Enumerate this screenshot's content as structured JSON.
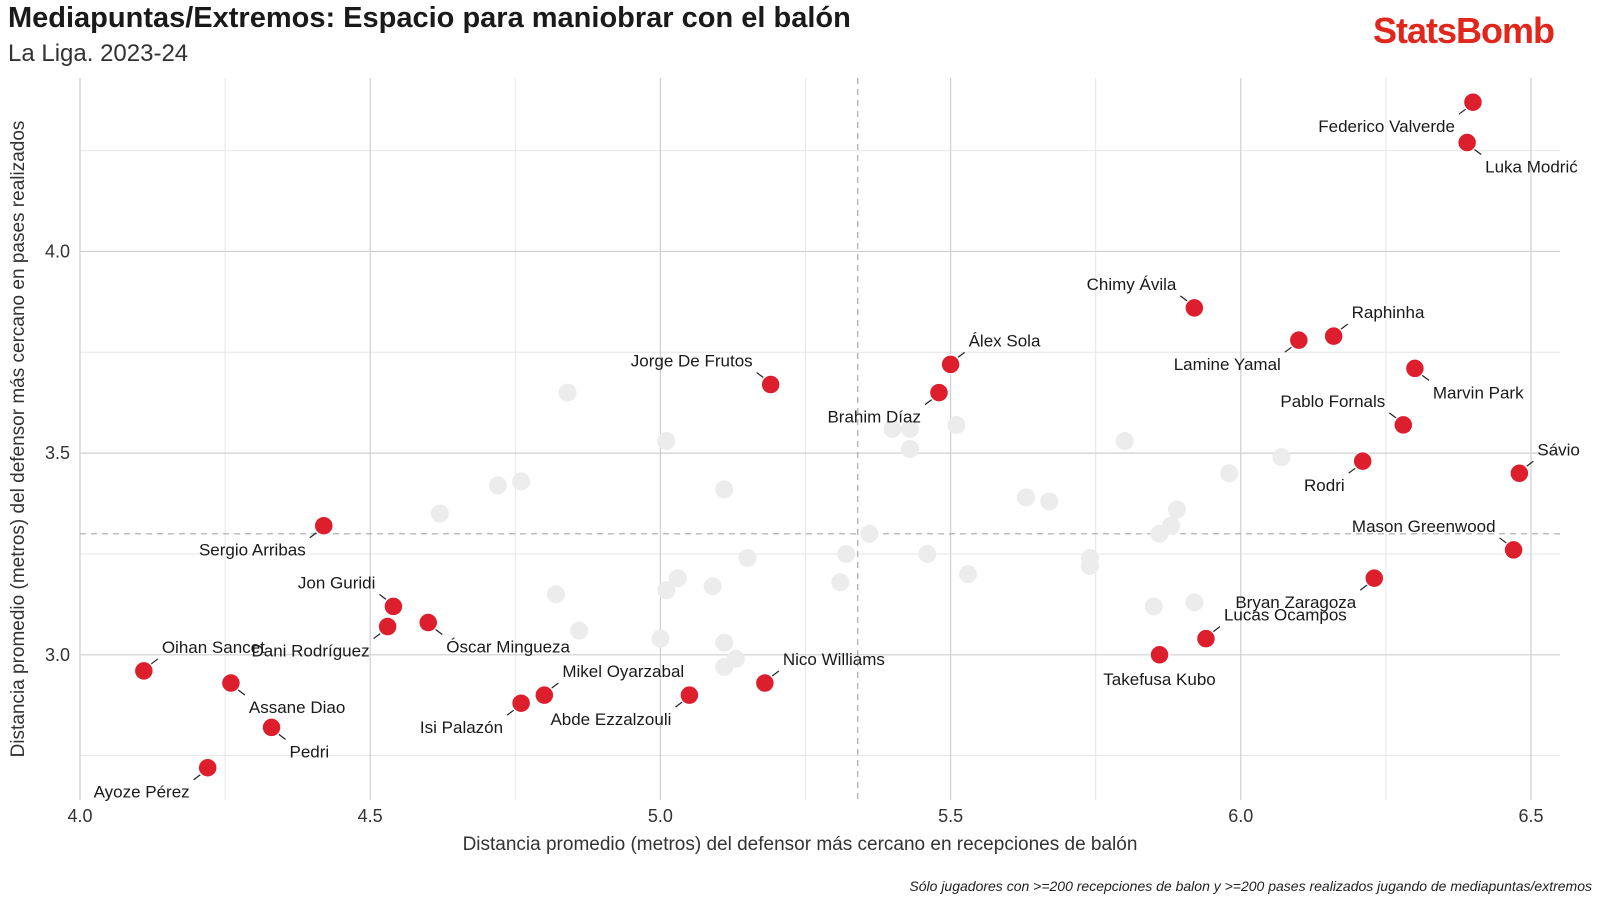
{
  "header": {
    "title": "Mediapuntas/Extremos: Espacio para maniobrar con el balón",
    "subtitle": "La Liga. 2023-24",
    "brand": "StatsBomb"
  },
  "footnote": "Sólo jugadores con >=200 recepciones de balon y >=200 pases realizados jugando de mediapuntas/extremos",
  "colors": {
    "highlight": "#dc1e2d",
    "background_points": "#ececec",
    "grid_major": "#cfcfcf",
    "grid_minor": "#e6e6e6",
    "brand": "#e1261c"
  },
  "chart_data": {
    "type": "scatter",
    "xlabel": "Distancia promedio (metros) del defensor más cercano en recepciones de balón",
    "ylabel": "Distancia promedio (metros) del defensor más cercano en pases realizados",
    "xlim": [
      4.0,
      6.55
    ],
    "ylim": [
      2.64,
      4.43
    ],
    "xticks": [
      "4.0",
      "4.5",
      "5.0",
      "5.5",
      "6.0",
      "6.5"
    ],
    "yticks": [
      "3.0",
      "3.5",
      "4.0"
    ],
    "grid": true,
    "reference_lines": {
      "x": 5.34,
      "y": 3.3
    },
    "highlighted": [
      {
        "name": "Federico Valverde",
        "x": 6.4,
        "y": 4.37,
        "label_pos": "bl"
      },
      {
        "name": "Luka Modrić",
        "x": 6.39,
        "y": 4.27,
        "label_pos": "br"
      },
      {
        "name": "Chimy Ávila",
        "x": 5.92,
        "y": 3.86,
        "label_pos": "tl"
      },
      {
        "name": "Raphinha",
        "x": 6.16,
        "y": 3.79,
        "label_pos": "tr"
      },
      {
        "name": "Lamine Yamal",
        "x": 6.1,
        "y": 3.78,
        "label_pos": "bl"
      },
      {
        "name": "Álex Sola",
        "x": 5.5,
        "y": 3.72,
        "label_pos": "tr"
      },
      {
        "name": "Marvin Park",
        "x": 6.3,
        "y": 3.71,
        "label_pos": "br"
      },
      {
        "name": "Jorge De Frutos",
        "x": 5.19,
        "y": 3.67,
        "label_pos": "tl"
      },
      {
        "name": "Brahim Díaz",
        "x": 5.48,
        "y": 3.65,
        "label_pos": "bl"
      },
      {
        "name": "Pablo Fornals",
        "x": 6.28,
        "y": 3.57,
        "label_pos": "tl"
      },
      {
        "name": "Rodri",
        "x": 6.21,
        "y": 3.48,
        "label_pos": "bl"
      },
      {
        "name": "Sávio",
        "x": 6.48,
        "y": 3.45,
        "label_pos": "tr"
      },
      {
        "name": "Sergio Arribas",
        "x": 4.42,
        "y": 3.32,
        "label_pos": "bl"
      },
      {
        "name": "Mason Greenwood",
        "x": 6.47,
        "y": 3.26,
        "label_pos": "tl"
      },
      {
        "name": "Bryan Zaragoza",
        "x": 6.23,
        "y": 3.19,
        "label_pos": "bl"
      },
      {
        "name": "Jon Guridi",
        "x": 4.54,
        "y": 3.12,
        "label_pos": "tl"
      },
      {
        "name": "Óscar Mingueza",
        "x": 4.6,
        "y": 3.08,
        "label_pos": "br"
      },
      {
        "name": "Dani Rodríguez",
        "x": 4.53,
        "y": 3.07,
        "label_pos": "bl"
      },
      {
        "name": "Lucas Ocampos",
        "x": 5.94,
        "y": 3.04,
        "label_pos": "tr"
      },
      {
        "name": "Takefusa Kubo",
        "x": 5.86,
        "y": 3.0,
        "label_pos": "bm"
      },
      {
        "name": "Oihan Sancet",
        "x": 4.11,
        "y": 2.96,
        "label_pos": "tr"
      },
      {
        "name": "Nico Williams",
        "x": 5.18,
        "y": 2.93,
        "label_pos": "tr"
      },
      {
        "name": "Assane Diao",
        "x": 4.26,
        "y": 2.93,
        "label_pos": "br"
      },
      {
        "name": "Mikel Oyarzabal",
        "x": 4.8,
        "y": 2.9,
        "label_pos": "tr"
      },
      {
        "name": "Abde Ezzalzouli",
        "x": 5.05,
        "y": 2.9,
        "label_pos": "bl"
      },
      {
        "name": "Isi Palazón",
        "x": 4.76,
        "y": 2.88,
        "label_pos": "bl"
      },
      {
        "name": "Pedri",
        "x": 4.33,
        "y": 2.82,
        "label_pos": "br"
      },
      {
        "name": "Ayoze Pérez",
        "x": 4.22,
        "y": 2.72,
        "label_pos": "bl"
      }
    ],
    "others": [
      {
        "x": 4.84,
        "y": 3.65
      },
      {
        "x": 5.01,
        "y": 3.53
      },
      {
        "x": 4.72,
        "y": 3.42
      },
      {
        "x": 4.76,
        "y": 3.43
      },
      {
        "x": 4.62,
        "y": 3.35
      },
      {
        "x": 5.11,
        "y": 3.41
      },
      {
        "x": 5.36,
        "y": 3.3
      },
      {
        "x": 5.32,
        "y": 3.25
      },
      {
        "x": 5.15,
        "y": 3.24
      },
      {
        "x": 5.03,
        "y": 3.19
      },
      {
        "x": 5.09,
        "y": 3.17
      },
      {
        "x": 5.01,
        "y": 3.16
      },
      {
        "x": 4.82,
        "y": 3.15
      },
      {
        "x": 5.31,
        "y": 3.18
      },
      {
        "x": 4.86,
        "y": 3.06
      },
      {
        "x": 5.0,
        "y": 3.04
      },
      {
        "x": 5.11,
        "y": 3.03
      },
      {
        "x": 5.13,
        "y": 2.99
      },
      {
        "x": 5.11,
        "y": 2.97
      },
      {
        "x": 5.4,
        "y": 3.56
      },
      {
        "x": 5.43,
        "y": 3.56
      },
      {
        "x": 5.43,
        "y": 3.51
      },
      {
        "x": 5.51,
        "y": 3.57
      },
      {
        "x": 5.46,
        "y": 3.25
      },
      {
        "x": 5.53,
        "y": 3.2
      },
      {
        "x": 5.63,
        "y": 3.39
      },
      {
        "x": 5.67,
        "y": 3.38
      },
      {
        "x": 5.74,
        "y": 3.24
      },
      {
        "x": 5.74,
        "y": 3.22
      },
      {
        "x": 5.8,
        "y": 3.53
      },
      {
        "x": 5.86,
        "y": 3.3
      },
      {
        "x": 5.88,
        "y": 3.32
      },
      {
        "x": 5.89,
        "y": 3.36
      },
      {
        "x": 5.85,
        "y": 3.12
      },
      {
        "x": 5.92,
        "y": 3.13
      },
      {
        "x": 5.98,
        "y": 3.45
      },
      {
        "x": 6.07,
        "y": 3.49
      }
    ]
  }
}
